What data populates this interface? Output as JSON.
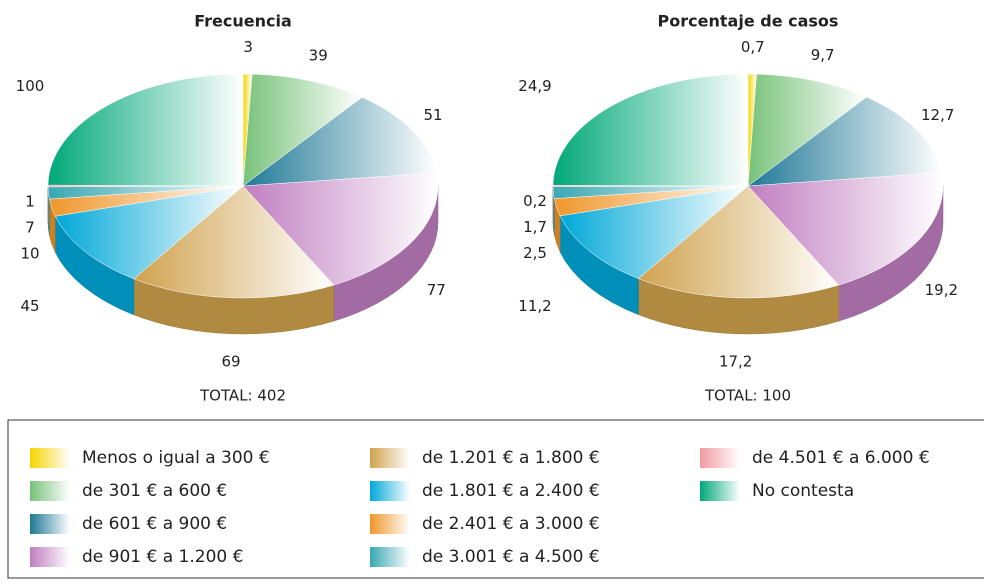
{
  "chart_data": [
    {
      "type": "pie3d",
      "title": "Frecuencia",
      "categories": [
        "Menos o igual a 300 €",
        "de 301 € a 600 €",
        "de 601 € a 900 €",
        "de 901 € a 1.200 €",
        "de 1.201 € a 1.800 €",
        "de 1.801 € a 2.400 €",
        "de 2.401 € a 3.000 €",
        "de 3.001 € a 4.500 €",
        "de 4.501 € a 6.000 €",
        "No contesta"
      ],
      "colors": [
        "#f5d400",
        "#78c27a",
        "#1f7896",
        "#c07ec0",
        "#d0a24e",
        "#00a8d8",
        "#f0962a",
        "#38a8b2",
        "#f29aa2",
        "#00a878"
      ],
      "values": [
        3,
        39,
        51,
        77,
        69,
        45,
        10,
        7,
        1,
        100
      ],
      "total_label": "TOTAL: 402"
    },
    {
      "type": "pie3d",
      "title": "Porcentaje de casos",
      "values": [
        0.7,
        9.7,
        12.7,
        19.2,
        17.2,
        11.2,
        2.5,
        1.7,
        0.2,
        24.9
      ],
      "value_labels": [
        "0,7",
        "9,7",
        "12,7",
        "19,2",
        "17,2",
        "11,2",
        "2,5",
        "1,7",
        "0,2",
        "24,9"
      ],
      "total_label": "TOTAL: 100"
    }
  ]
}
